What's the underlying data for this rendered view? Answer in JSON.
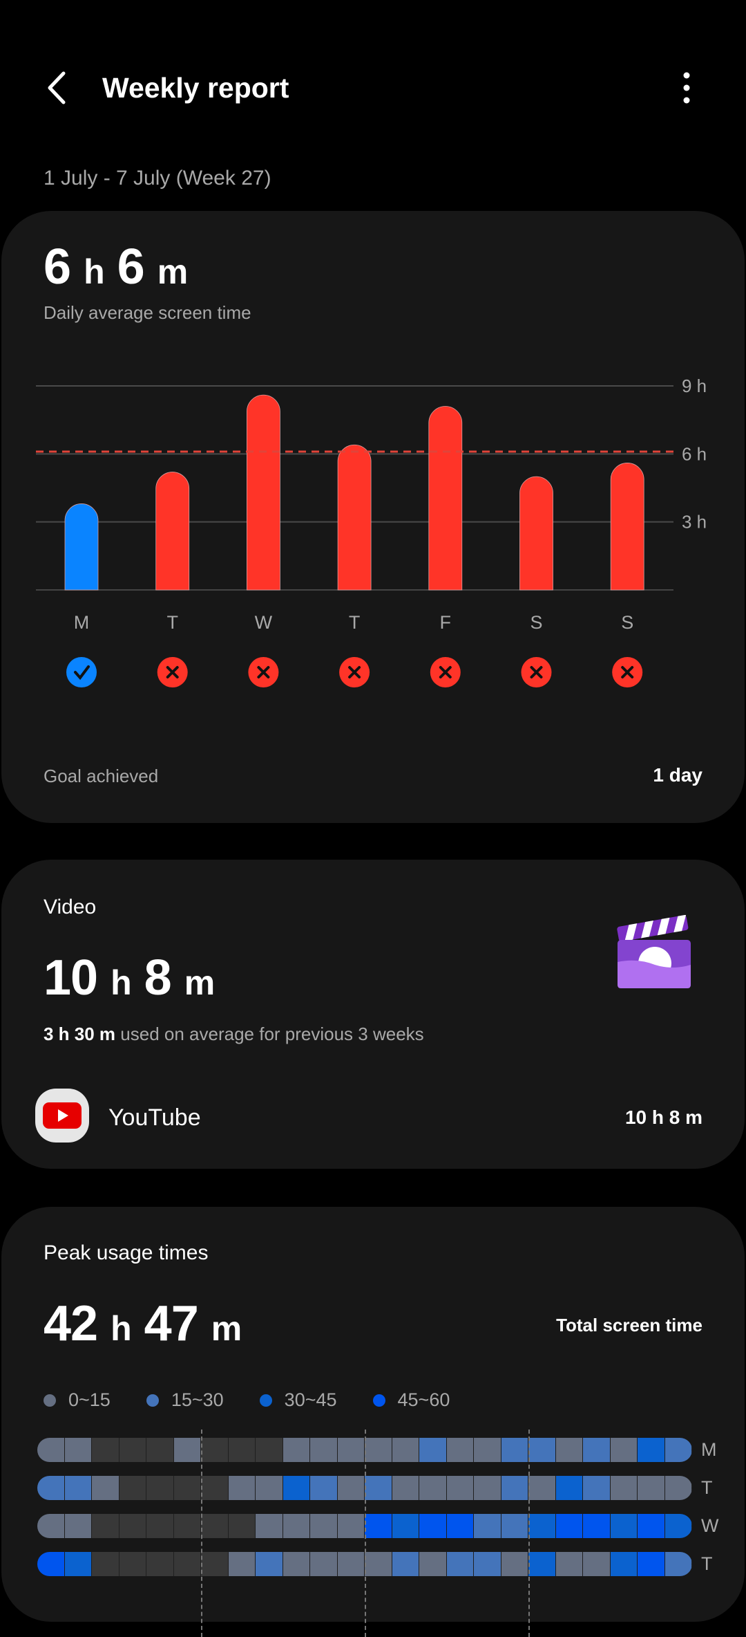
{
  "header": {
    "title": "Weekly report"
  },
  "date_range": "1 July - 7 July (Week 27)",
  "summary": {
    "hours": "6",
    "minutes": "6",
    "h_unit": "h",
    "m_unit": "m",
    "label": "Daily average screen time",
    "goal_label": "Goal achieved",
    "goal_value": "1 day"
  },
  "chart_data": {
    "type": "bar",
    "categories": [
      "M",
      "T",
      "W",
      "T",
      "F",
      "S",
      "S"
    ],
    "values": [
      3.8,
      5.2,
      8.6,
      6.4,
      8.1,
      5.0,
      5.6
    ],
    "ylim": [
      0,
      9
    ],
    "yticks": [
      "3 h",
      "6 h",
      "9 h"
    ],
    "reference_line": 6.1,
    "goal_met": [
      true,
      false,
      false,
      false,
      false,
      false,
      false
    ],
    "colors": {
      "met": "#0a84ff",
      "missed": "#ff3428",
      "reference": "#e0443a"
    }
  },
  "video": {
    "title": "Video",
    "hours": "10",
    "minutes": "8",
    "avg_value": "3 h 30 m",
    "avg_text": " used on average for previous 3 weeks",
    "app": {
      "name": "YouTube",
      "time": "10 h 8 m"
    }
  },
  "peak": {
    "title": "Peak usage times",
    "hours": "42",
    "minutes": "47",
    "total_label": "Total screen time",
    "legend": [
      {
        "label": "0~15",
        "color": "#656f82"
      },
      {
        "label": "15~30",
        "color": "#4474ba"
      },
      {
        "label": "30~45",
        "color": "#0b62cf"
      },
      {
        "label": "45~60",
        "color": "#0055ee"
      }
    ],
    "empty_color": "#383838",
    "rows": [
      {
        "day": "M",
        "levels": [
          1,
          1,
          0,
          0,
          0,
          1,
          0,
          0,
          0,
          1,
          1,
          1,
          1,
          1,
          2,
          1,
          1,
          2,
          2,
          1,
          2,
          1,
          3,
          2
        ]
      },
      {
        "day": "T",
        "levels": [
          2,
          2,
          1,
          0,
          0,
          0,
          0,
          1,
          1,
          3,
          2,
          1,
          2,
          1,
          1,
          1,
          1,
          2,
          1,
          3,
          2,
          1,
          1,
          1
        ]
      },
      {
        "day": "W",
        "levels": [
          1,
          1,
          0,
          0,
          0,
          0,
          0,
          0,
          1,
          1,
          1,
          1,
          4,
          3,
          4,
          4,
          2,
          2,
          3,
          4,
          4,
          3,
          4,
          3
        ]
      },
      {
        "day": "T",
        "levels": [
          4,
          3,
          0,
          0,
          0,
          0,
          0,
          1,
          2,
          1,
          1,
          1,
          1,
          2,
          1,
          2,
          2,
          1,
          3,
          1,
          1,
          3,
          4,
          2
        ]
      }
    ]
  }
}
